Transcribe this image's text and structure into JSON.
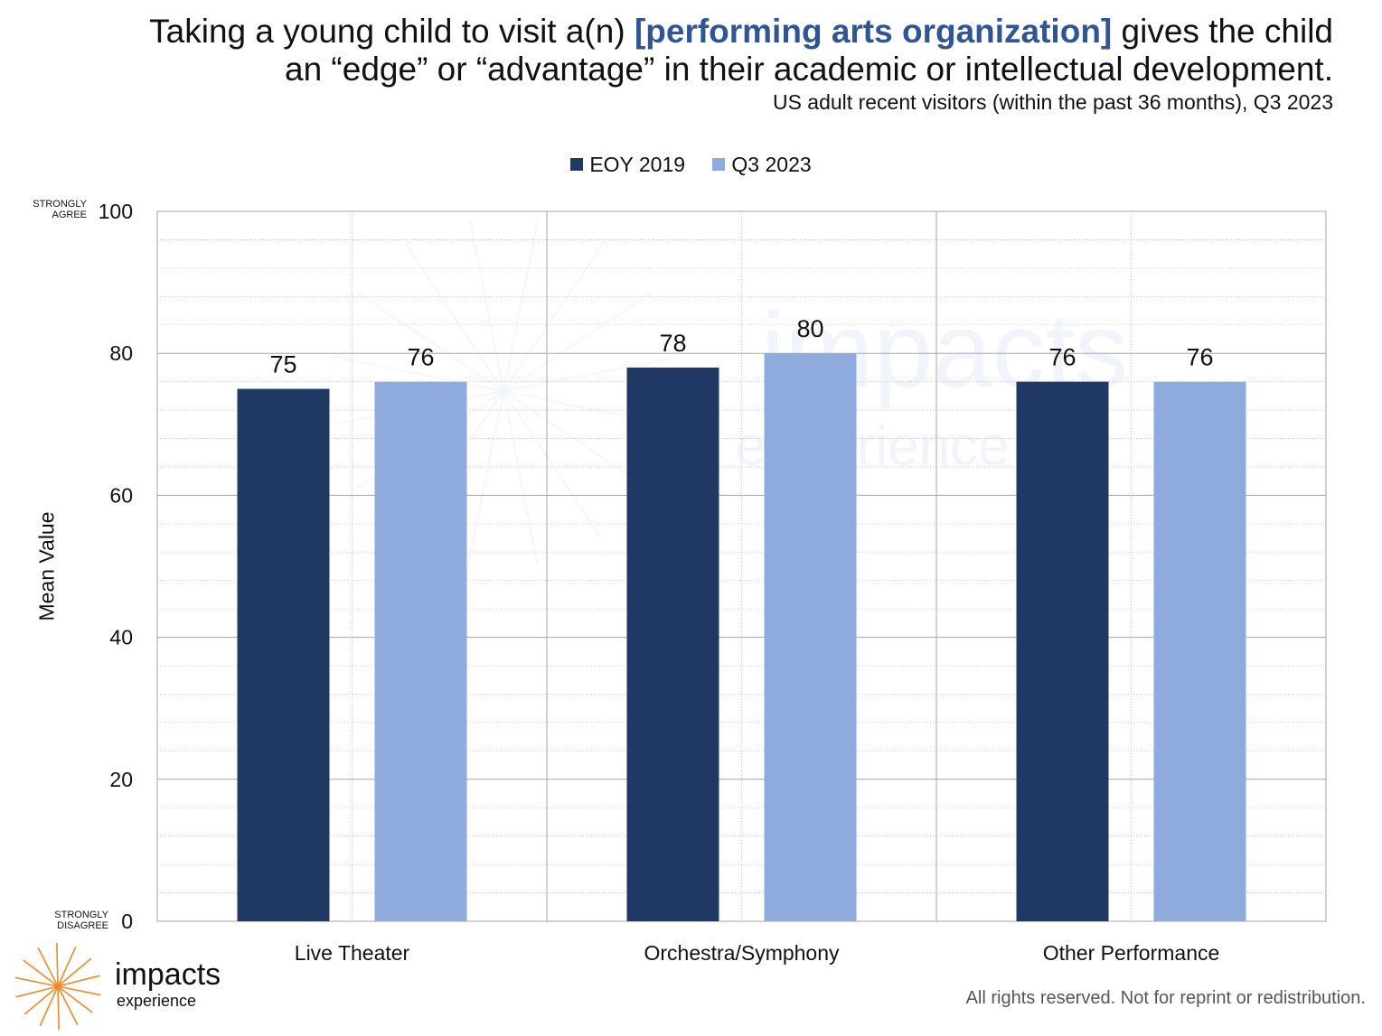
{
  "header": {
    "title_pre": "Taking a young child to visit a(n) ",
    "title_highlight": "[performing arts organization]",
    "title_post": " gives the child",
    "title_line2": "an “edge” or “advantage” in their academic or intellectual development.",
    "subtitle": "US adult recent visitors (within the past 36 months), Q3 2023"
  },
  "y_anchor": {
    "top_line1": "STRONGLY",
    "top_line2": "AGREE",
    "bottom_line1": "STRONGLY",
    "bottom_line2": "DISAGREE"
  },
  "footer": {
    "text": "All rights reserved. Not for reprint or redistribution."
  },
  "logo": {
    "word": "impacts",
    "sub": "experience"
  },
  "watermark": {
    "word": "impacts",
    "sub": "experience"
  },
  "colors": {
    "series1": "#203864",
    "series2": "#8faadc",
    "highlight": "#2f5597",
    "logo_orange": "#f08a24"
  },
  "chart_data": {
    "type": "bar",
    "categories": [
      "Live Theater",
      "Orchestra/Symphony",
      "Other Performance"
    ],
    "series": [
      {
        "name": "EOY 2019",
        "values": [
          75,
          78,
          76
        ]
      },
      {
        "name": "Q3 2023",
        "values": [
          76,
          80,
          76
        ]
      }
    ],
    "ylabel": "Mean Value",
    "ylim": [
      0,
      100
    ],
    "yticks": [
      0,
      20,
      40,
      60,
      80,
      100
    ],
    "legend_position": "top-center",
    "grid": true
  }
}
